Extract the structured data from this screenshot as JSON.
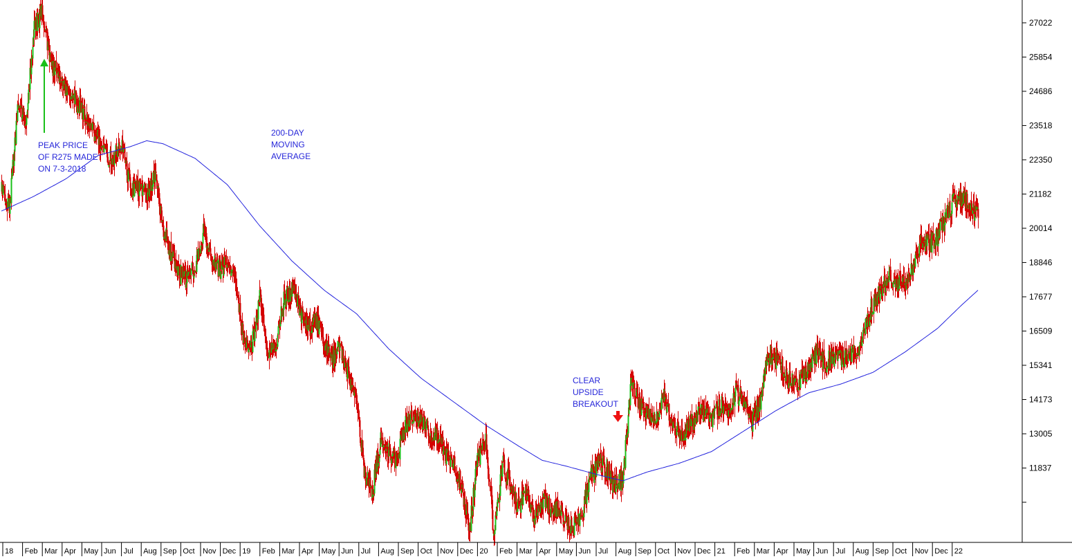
{
  "chart_data": {
    "type": "candlestick",
    "x_axis_ticks": [
      "18",
      "Feb",
      "Mar",
      "Apr",
      "May",
      "Jun",
      "Jul",
      "Aug",
      "Sep",
      "Oct",
      "Nov",
      "Dec",
      "19",
      "Feb",
      "Mar",
      "Apr",
      "May",
      "Jun",
      "Jul",
      "Aug",
      "Sep",
      "Oct",
      "Nov",
      "Dec",
      "20",
      "Feb",
      "Mar",
      "Apr",
      "May",
      "Jun",
      "Jul",
      "Aug",
      "Sep",
      "Oct",
      "Nov",
      "Dec",
      "21",
      "Feb",
      "Mar",
      "Apr",
      "May",
      "Jun",
      "Jul",
      "Aug",
      "Sep",
      "Oct",
      "Nov",
      "Dec",
      "22"
    ],
    "y_axis_ticks": [
      27022,
      25854,
      24686,
      23518,
      22350,
      21182,
      20014,
      18846,
      17677,
      16509,
      15341,
      14173,
      13005,
      11837
    ],
    "ylim": [
      9300,
      27800
    ],
    "grid": false,
    "price_path": [
      [
        0,
        21300
      ],
      [
        1,
        20800
      ],
      [
        2,
        24200
      ],
      [
        3,
        23600
      ],
      [
        4,
        26800
      ],
      [
        5,
        27400
      ],
      [
        6,
        25700
      ],
      [
        8,
        24700
      ],
      [
        10,
        24100
      ],
      [
        12,
        23000
      ],
      [
        13,
        22400
      ],
      [
        15,
        22700
      ],
      [
        16,
        21400
      ],
      [
        18,
        21200
      ],
      [
        19,
        21800
      ],
      [
        20,
        20100
      ],
      [
        21,
        19100
      ],
      [
        22,
        18500
      ],
      [
        23,
        18300
      ],
      [
        24,
        18700
      ],
      [
        25,
        19900
      ],
      [
        26,
        19000
      ],
      [
        27,
        18600
      ],
      [
        28,
        19000
      ],
      [
        29,
        18200
      ],
      [
        30,
        16200
      ],
      [
        31,
        16000
      ],
      [
        32,
        17700
      ],
      [
        33,
        15500
      ],
      [
        34,
        16100
      ],
      [
        35,
        17600
      ],
      [
        36,
        17900
      ],
      [
        37,
        17200
      ],
      [
        38,
        16600
      ],
      [
        39,
        16900
      ],
      [
        40,
        16000
      ],
      [
        41,
        15600
      ],
      [
        42,
        16000
      ],
      [
        43,
        15000
      ],
      [
        44,
        14000
      ],
      [
        45,
        11600
      ],
      [
        46,
        11100
      ],
      [
        47,
        12900
      ],
      [
        48,
        12400
      ],
      [
        49,
        12100
      ],
      [
        50,
        13300
      ],
      [
        51,
        13700
      ],
      [
        52,
        13500
      ],
      [
        53,
        13100
      ],
      [
        54,
        12900
      ],
      [
        55,
        12300
      ],
      [
        56,
        11900
      ],
      [
        57,
        11200
      ],
      [
        58,
        9800
      ],
      [
        59,
        12200
      ],
      [
        60,
        12700
      ],
      [
        61,
        9500
      ],
      [
        62,
        12000
      ],
      [
        63,
        11300
      ],
      [
        64,
        10500
      ],
      [
        65,
        11000
      ],
      [
        66,
        10000
      ],
      [
        67,
        10800
      ],
      [
        68,
        10500
      ],
      [
        69,
        10400
      ],
      [
        70,
        10000
      ],
      [
        71,
        9900
      ],
      [
        72,
        10400
      ],
      [
        73,
        11500
      ],
      [
        74,
        12100
      ],
      [
        75,
        11800
      ],
      [
        76,
        11200
      ],
      [
        77,
        11500
      ],
      [
        78,
        14800
      ],
      [
        79,
        14000
      ],
      [
        80,
        13800
      ],
      [
        81,
        13400
      ],
      [
        82,
        14300
      ],
      [
        83,
        13500
      ],
      [
        84,
        13000
      ],
      [
        85,
        13200
      ],
      [
        86,
        13500
      ],
      [
        87,
        13800
      ],
      [
        88,
        13400
      ],
      [
        89,
        14000
      ],
      [
        90,
        13900
      ],
      [
        91,
        14400
      ],
      [
        92,
        14100
      ],
      [
        93,
        13400
      ],
      [
        94,
        14200
      ],
      [
        95,
        15700
      ],
      [
        96,
        15600
      ],
      [
        97,
        15100
      ],
      [
        98,
        14700
      ],
      [
        99,
        14900
      ],
      [
        100,
        15200
      ],
      [
        101,
        15800
      ],
      [
        102,
        15400
      ],
      [
        103,
        15700
      ],
      [
        104,
        15500
      ],
      [
        105,
        15600
      ],
      [
        106,
        15800
      ],
      [
        107,
        16700
      ],
      [
        108,
        17500
      ],
      [
        109,
        17900
      ],
      [
        110,
        18400
      ],
      [
        111,
        18100
      ],
      [
        112,
        18200
      ],
      [
        113,
        18600
      ],
      [
        114,
        19600
      ],
      [
        115,
        19500
      ],
      [
        116,
        19800
      ],
      [
        117,
        20500
      ],
      [
        118,
        20900
      ],
      [
        119,
        21100
      ],
      [
        120,
        20800
      ],
      [
        121,
        20400
      ]
    ],
    "moving_average_200": [
      [
        0,
        20600
      ],
      [
        4,
        21100
      ],
      [
        8,
        21700
      ],
      [
        12,
        22500
      ],
      [
        16,
        22800
      ],
      [
        18,
        23000
      ],
      [
        20,
        22900
      ],
      [
        24,
        22400
      ],
      [
        28,
        21500
      ],
      [
        32,
        20100
      ],
      [
        36,
        18900
      ],
      [
        40,
        17900
      ],
      [
        44,
        17100
      ],
      [
        48,
        15900
      ],
      [
        52,
        14900
      ],
      [
        56,
        14100
      ],
      [
        60,
        13300
      ],
      [
        64,
        12600
      ],
      [
        67,
        12100
      ],
      [
        70,
        11900
      ],
      [
        74,
        11600
      ],
      [
        77,
        11400
      ],
      [
        80,
        11700
      ],
      [
        84,
        12000
      ],
      [
        88,
        12400
      ],
      [
        92,
        13100
      ],
      [
        96,
        13800
      ],
      [
        100,
        14400
      ],
      [
        104,
        14700
      ],
      [
        108,
        15100
      ],
      [
        112,
        15800
      ],
      [
        116,
        16600
      ],
      [
        119,
        17400
      ],
      [
        121,
        17900
      ]
    ],
    "annotations": {
      "peak": [
        "PEAK PRICE",
        "OF R275 MADE",
        "ON 7-3-2018"
      ],
      "moving_average": [
        "200-DAY",
        "MOVING",
        "AVERAGE"
      ],
      "breakout": [
        "CLEAR",
        "UPSIDE",
        "BREAKOUT"
      ]
    },
    "colors": {
      "up": "#19c019",
      "down": "#d40000",
      "moving_average": "#2222dd",
      "annotation_text": "#2626d9",
      "peak_arrow": "#19c019",
      "breakout_arrow": "#ee1111",
      "axis": "#000000"
    }
  }
}
